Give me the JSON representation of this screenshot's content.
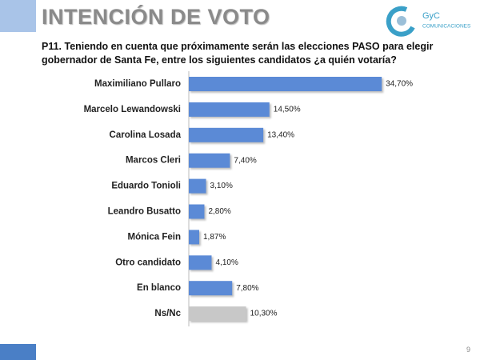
{
  "chart_data": {
    "type": "bar",
    "orientation": "horizontal",
    "title": "INTENCIÓN DE VOTO",
    "subtitle": "P11. Teniendo en cuenta que próximamente serán las elecciones PASO para elegir gobernador de Santa Fe, entre los siguientes candidatos ¿a quién votaría?",
    "categories": [
      "Maximiliano Pullaro",
      "Marcelo Lewandowski",
      "Carolina Losada",
      "Marcos Cleri",
      "Eduardo Tonioli",
      "Leandro Busatto",
      "Mónica Fein",
      "Otro candidato",
      "En blanco",
      "Ns/Nc"
    ],
    "values": [
      34.7,
      14.5,
      13.4,
      7.4,
      3.1,
      2.8,
      1.87,
      4.1,
      7.8,
      10.3
    ],
    "value_labels": [
      "34,70%",
      "14,50%",
      "13,40%",
      "7,40%",
      "3,10%",
      "2,80%",
      "1,87%",
      "4,10%",
      "7,80%",
      "10,30%"
    ],
    "colors": [
      "#5b8ad6",
      "#5b8ad6",
      "#5b8ad6",
      "#5b8ad6",
      "#5b8ad6",
      "#5b8ad6",
      "#5b8ad6",
      "#5b8ad6",
      "#5b8ad6",
      "#c8c8c8"
    ]
  },
  "logo": {
    "name": "GyC",
    "tagline": "COMUNICACIONES"
  },
  "page_number": "9"
}
